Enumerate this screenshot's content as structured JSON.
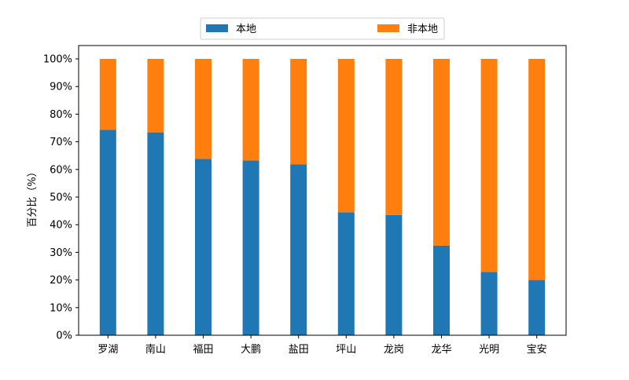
{
  "chart_data": {
    "type": "bar",
    "stacked": true,
    "categories": [
      "罗湖",
      "南山",
      "福田",
      "大鹏",
      "盐田",
      "坪山",
      "龙岗",
      "龙华",
      "光明",
      "宝安"
    ],
    "series": [
      {
        "name": "本地",
        "color": "#1f77b4",
        "values": [
          74.3,
          73.4,
          63.8,
          63.2,
          61.8,
          44.5,
          43.5,
          32.4,
          22.9,
          20.0
        ]
      },
      {
        "name": "非本地",
        "color": "#ff7f0e",
        "values": [
          25.7,
          26.6,
          36.2,
          36.8,
          38.2,
          55.5,
          56.5,
          67.6,
          77.1,
          80.0
        ]
      }
    ],
    "title": "",
    "xlabel": "",
    "ylabel": "百分比（%）",
    "ylim": [
      0,
      100
    ],
    "yticks": [
      "0%",
      "10%",
      "20%",
      "30%",
      "40%",
      "50%",
      "60%",
      "70%",
      "80%",
      "90%",
      "100%"
    ],
    "legend_position": "top-center",
    "grid": false
  }
}
